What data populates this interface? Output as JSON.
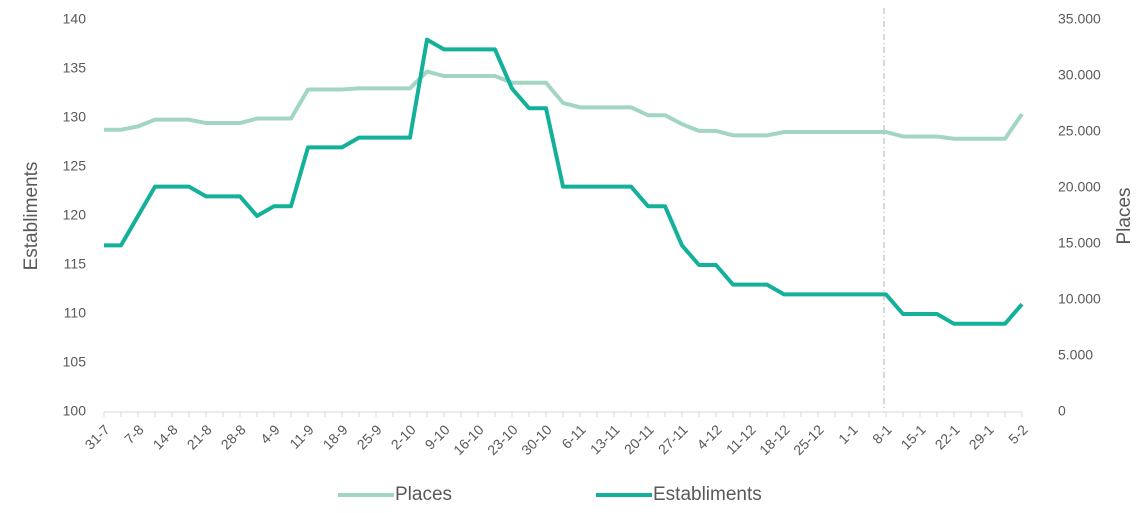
{
  "chart_data": {
    "type": "line",
    "y_label": "Establiments",
    "y2_label": "Places",
    "categories": [
      "31-7",
      null,
      "7-8",
      null,
      "14-8",
      null,
      "21-8",
      null,
      "28-8",
      null,
      "4-9",
      null,
      "11-9",
      null,
      "18-9",
      null,
      "25-9",
      null,
      "2-10",
      null,
      "9-10",
      null,
      "16-10",
      null,
      "23-10",
      null,
      "30-10",
      null,
      "6-11",
      null,
      "13-11",
      null,
      "20-11",
      null,
      "27-11",
      null,
      "4-12",
      null,
      "11-12",
      null,
      "18-12",
      null,
      "25-12",
      null,
      "1-1",
      null,
      "8-1",
      null,
      "15-1",
      null,
      "22-1",
      null,
      "29-1",
      null,
      "5-2"
    ],
    "series": [
      {
        "name": "Places",
        "color": "#a3d5c4",
        "axis": "y2",
        "values": [
          25200,
          25200,
          25500,
          26100,
          26100,
          26100,
          25800,
          25800,
          25800,
          26200,
          26200,
          26200,
          28800,
          28800,
          28800,
          28900,
          28900,
          28900,
          28900,
          30400,
          30000,
          30000,
          30000,
          30000,
          29400,
          29400,
          29400,
          27600,
          27200,
          27200,
          27200,
          27200,
          26500,
          26500,
          25700,
          25100,
          25100,
          24700,
          24700,
          24700,
          25000,
          25000,
          25000,
          25000,
          25000,
          25000,
          25000,
          24600,
          24600,
          24600,
          24400,
          24400,
          24400,
          24400,
          26600
        ]
      },
      {
        "name": "Establiments",
        "color": "#13b09a",
        "values": [
          117,
          117,
          120,
          123,
          123,
          123,
          122,
          122,
          122,
          120,
          121,
          121,
          127,
          127,
          127,
          128,
          128,
          128,
          128,
          138,
          137,
          137,
          137,
          137,
          133,
          131,
          131,
          123,
          123,
          123,
          123,
          123,
          121,
          121,
          117,
          115,
          115,
          113,
          113,
          113,
          112,
          112,
          112,
          112,
          112,
          112,
          112,
          110,
          110,
          110,
          109,
          109,
          109,
          109,
          111
        ]
      }
    ],
    "ylim": [
      100,
      140
    ],
    "yticks": [
      100,
      105,
      110,
      115,
      120,
      125,
      130,
      135,
      140
    ],
    "y2lim": [
      0,
      35000
    ],
    "y2ticks": [
      0,
      {
        "value": 5000,
        "label": "5.000"
      },
      {
        "value": 10000,
        "label": "10.000"
      },
      {
        "value": 15000,
        "label": "15.000"
      },
      {
        "value": 20000,
        "label": "20.000"
      },
      {
        "value": 25000,
        "label": "25.000"
      },
      {
        "value": 30000,
        "label": "30.000"
      },
      {
        "value": 35000,
        "label": "35.000"
      }
    ],
    "legend": "bottom"
  }
}
